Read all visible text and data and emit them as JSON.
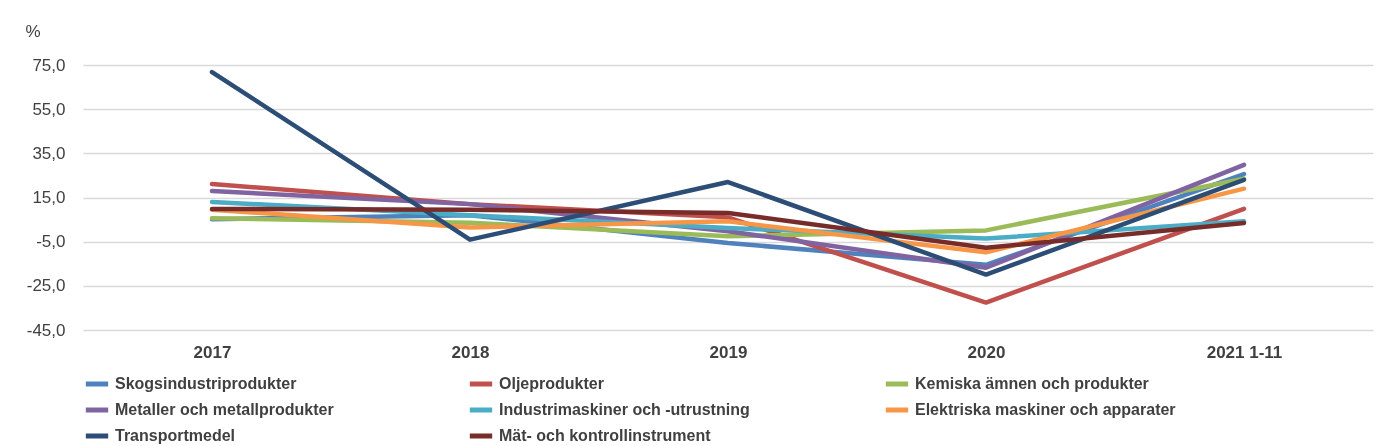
{
  "chart_data": {
    "type": "line",
    "ylabel": "%",
    "categories": [
      "2017",
      "2018",
      "2019",
      "2020",
      "2021 1-11"
    ],
    "ylim": [
      -45,
      75
    ],
    "yticks": [
      {
        "value": -45,
        "label": "-45,0"
      },
      {
        "value": -25,
        "label": "-25,0"
      },
      {
        "value": -5,
        "label": "-5,0"
      },
      {
        "value": 15,
        "label": "15,0"
      },
      {
        "value": 35,
        "label": "35,0"
      },
      {
        "value": 55,
        "label": "55,0"
      },
      {
        "value": 75,
        "label": "75,0"
      }
    ],
    "grid": "y",
    "legend": "bottom",
    "marker": "none",
    "line_style": "solid",
    "series": [
      {
        "name": "Skogsindustriprodukter",
        "color": "#4f81bd",
        "values": [
          5.2,
          7,
          -5.6,
          -15.5,
          25.6
        ]
      },
      {
        "name": "Oljeprodukter",
        "color": "#c0504d",
        "values": [
          21.1,
          12,
          6,
          -32.6,
          9.9
        ]
      },
      {
        "name": "Kemiska ämnen och produkter",
        "color": "#9bbb59",
        "values": [
          5.6,
          3.6,
          -2.6,
          0.1,
          23.5
        ]
      },
      {
        "name": "Metaller och metallprodukter",
        "color": "#8064a2",
        "values": [
          17.9,
          12,
          -0.3,
          -16.8,
          29.8
        ]
      },
      {
        "name": "Industrimaskiner och -utrustning",
        "color": "#4bacc6",
        "values": [
          13,
          7,
          1.2,
          -3.6,
          4.2
        ]
      },
      {
        "name": "Elektriska maskiner och apparater",
        "color": "#f79646",
        "values": [
          9.5,
          1.4,
          4.2,
          -9.8,
          19
        ]
      },
      {
        "name": "Transportmedel",
        "color": "#2c4d75",
        "values": [
          71.8,
          -4.1,
          22,
          -19.9,
          23
        ]
      },
      {
        "name": "Mät- och kontrollinstrument",
        "color": "#772c2a",
        "values": [
          9.8,
          9.5,
          8,
          -7.8,
          3.5
        ]
      }
    ]
  }
}
